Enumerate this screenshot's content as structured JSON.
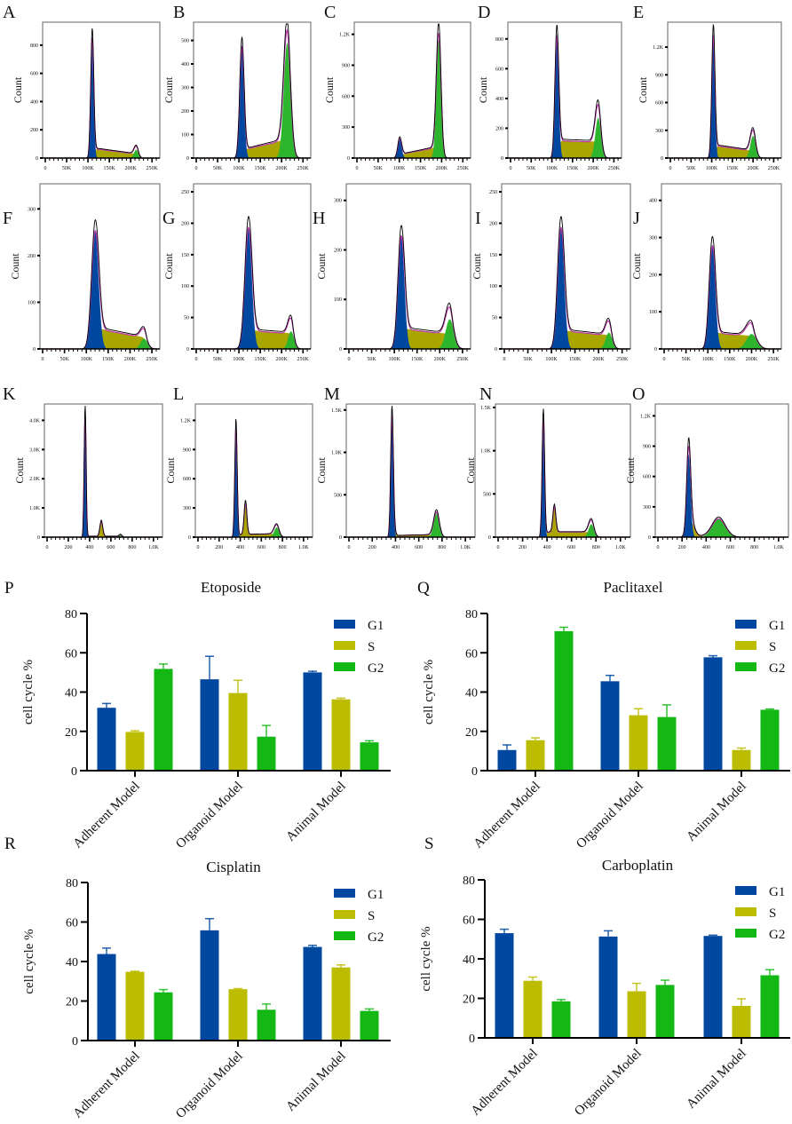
{
  "colors": {
    "g1": "#0047a0",
    "s": "#bcbc00",
    "s_hist": "#a9a600",
    "g2": "#14b814",
    "g2_hist": "#2db52d",
    "outline": "#000000",
    "fit": "#c03cb0"
  },
  "chart_data": [
    {
      "type": "area",
      "label": "A",
      "ylabel": "Count",
      "xmax": 262,
      "ymax": 950,
      "xticks": [
        "0",
        "50K",
        "100K",
        "150K",
        "200K",
        "250K"
      ],
      "xtick_values": [
        0,
        50,
        100,
        150,
        200,
        250
      ],
      "yticks": [
        "0",
        "200",
        "400",
        "600",
        "800"
      ],
      "ytick_values": [
        0,
        200,
        400,
        600,
        800
      ],
      "g1": {
        "mu": 110,
        "sd": 3.5,
        "h": 860
      },
      "s": {
        "level": 70,
        "end_level": 30,
        "bump": null
      },
      "g2": {
        "mu": 213,
        "sd": 5,
        "h": 60
      }
    },
    {
      "type": "area",
      "label": "B",
      "ylabel": "Count",
      "xmax": 262,
      "ymax": 570,
      "xticks": [
        "0",
        "50K",
        "100K",
        "150K",
        "200K",
        "250K"
      ],
      "xtick_values": [
        0,
        50,
        100,
        150,
        200,
        250
      ],
      "yticks": [
        "0",
        "100",
        "200",
        "300",
        "400",
        "500"
      ],
      "ytick_values": [
        0,
        100,
        200,
        300,
        400,
        500
      ],
      "g1": {
        "mu": 107,
        "sd": 5,
        "h": 480
      },
      "s": {
        "level": 35,
        "end_level": 80,
        "bump": null
      },
      "g2": {
        "mu": 213,
        "sd": 8,
        "h": 490
      }
    },
    {
      "type": "area",
      "label": "C",
      "ylabel": "Count",
      "xmax": 262,
      "ymax": 1300,
      "xticks": [
        "0",
        "50K",
        "100K",
        "150K",
        "200K",
        "250K"
      ],
      "xtick_values": [
        0,
        50,
        100,
        150,
        200,
        250
      ],
      "yticks": [
        "0",
        "300",
        "600",
        "900",
        "1.2K"
      ],
      "ytick_values": [
        0,
        300,
        600,
        900,
        1200
      ],
      "g1": {
        "mu": 101,
        "sd": 4.5,
        "h": 190
      },
      "s": {
        "level": 35,
        "end_level": 110,
        "bump": null
      },
      "g2": {
        "mu": 193,
        "sd": 5.5,
        "h": 1150
      }
    },
    {
      "type": "area",
      "label": "D",
      "ylabel": "Count",
      "xmax": 262,
      "ymax": 900,
      "xticks": [
        "0",
        "50K",
        "100K",
        "150K",
        "200K",
        "250K"
      ],
      "xtick_values": [
        0,
        50,
        100,
        150,
        200,
        250
      ],
      "yticks": [
        "0",
        "200",
        "400",
        "600",
        "800"
      ],
      "ytick_values": [
        0,
        200,
        400,
        600,
        800
      ],
      "g1": {
        "mu": 112,
        "sd": 4.5,
        "h": 830
      },
      "s": {
        "level": 120,
        "end_level": 110,
        "bump": null
      },
      "g2": {
        "mu": 212,
        "sd": 7,
        "h": 270
      }
    },
    {
      "type": "area",
      "label": "E",
      "ylabel": "Count",
      "xmax": 262,
      "ymax": 1450,
      "xticks": [
        "0",
        "50K",
        "100K",
        "150K",
        "200K",
        "250K"
      ],
      "xtick_values": [
        0,
        50,
        100,
        150,
        200,
        250
      ],
      "yticks": [
        "0",
        "300",
        "600",
        "900",
        "1.2K"
      ],
      "ytick_values": [
        0,
        300,
        600,
        900,
        1200
      ],
      "g1": {
        "mu": 104,
        "sd": 3.8,
        "h": 1350
      },
      "s": {
        "level": 140,
        "end_level": 80,
        "bump": null
      },
      "g2": {
        "mu": 200,
        "sd": 6.5,
        "h": 240
      }
    },
    {
      "type": "area",
      "label": "F",
      "ylabel": "Count",
      "xmax": 262,
      "ymax": 350,
      "xticks": [
        "0",
        "50K",
        "100K",
        "150K",
        "200K",
        "250K"
      ],
      "xtick_values": [
        0,
        50,
        100,
        150,
        200,
        250
      ],
      "yticks": [
        "0",
        "100",
        "200",
        "300"
      ],
      "ytick_values": [
        0,
        100,
        200,
        300
      ],
      "g1": {
        "mu": 120,
        "sd": 8,
        "h": 255
      },
      "s": {
        "level": 45,
        "end_level": 25,
        "bump": null
      },
      "g2": {
        "mu": 232,
        "sd": 8,
        "h": 22
      }
    },
    {
      "type": "area",
      "label": "G",
      "ylabel": "Count",
      "xmax": 262,
      "ymax": 260,
      "xticks": [
        "0",
        "50K",
        "100K",
        "150K",
        "200K",
        "250K"
      ],
      "xtick_values": [
        0,
        50,
        100,
        150,
        200,
        250
      ],
      "yticks": [
        "0",
        "50",
        "100",
        "150",
        "200",
        "250"
      ],
      "ytick_values": [
        0,
        50,
        100,
        150,
        200,
        250
      ],
      "g1": {
        "mu": 122,
        "sd": 8,
        "h": 195
      },
      "s": {
        "level": 30,
        "end_level": 25,
        "bump": null
      },
      "g2": {
        "mu": 222,
        "sd": 7,
        "h": 28
      }
    },
    {
      "type": "area",
      "label": "H",
      "ylabel": "Count",
      "xmax": 262,
      "ymax": 330,
      "xticks": [
        "0",
        "50K",
        "100K",
        "150K",
        "200K",
        "250K"
      ],
      "xtick_values": [
        0,
        50,
        100,
        150,
        200,
        250
      ],
      "yticks": [
        "0",
        "100",
        "200",
        "300"
      ],
      "ytick_values": [
        0,
        100,
        200,
        300
      ],
      "g1": {
        "mu": 115,
        "sd": 7,
        "h": 230
      },
      "s": {
        "level": 42,
        "end_level": 30,
        "bump": null
      },
      "g2": {
        "mu": 222,
        "sd": 9,
        "h": 60
      }
    },
    {
      "type": "area",
      "label": "I",
      "ylabel": "Count",
      "xmax": 262,
      "ymax": 260,
      "xticks": [
        "0",
        "50K",
        "100K",
        "150K",
        "200K",
        "250K"
      ],
      "xtick_values": [
        0,
        50,
        100,
        150,
        200,
        250
      ],
      "yticks": [
        "0",
        "50",
        "100",
        "150",
        "200",
        "250"
      ],
      "ytick_values": [
        0,
        50,
        100,
        150,
        200,
        250
      ],
      "g1": {
        "mu": 120,
        "sd": 7,
        "h": 195
      },
      "s": {
        "level": 30,
        "end_level": 22,
        "bump": null
      },
      "g2": {
        "mu": 222,
        "sd": 7,
        "h": 26
      }
    },
    {
      "type": "area",
      "label": "J",
      "ylabel": "Count",
      "xmax": 262,
      "ymax": 440,
      "xticks": [
        "0",
        "50K",
        "100K",
        "150K",
        "200K",
        "250K"
      ],
      "xtick_values": [
        0,
        50,
        100,
        150,
        200,
        250
      ],
      "yticks": [
        "0",
        "100",
        "200",
        "300",
        "400"
      ],
      "ytick_values": [
        0,
        100,
        200,
        300,
        400
      ],
      "g1": {
        "mu": 110,
        "sd": 7,
        "h": 280
      },
      "s": {
        "level": 45,
        "end_level": 35,
        "bump": null
      },
      "g2": {
        "mu": 200,
        "sd": 12,
        "h": 40
      }
    },
    {
      "type": "area",
      "label": "K",
      "ylabel": "Count",
      "xmax": 1060,
      "ymax": 4500,
      "xticks": [
        "0",
        "200",
        "400",
        "600",
        "800",
        "1.0K"
      ],
      "xtick_values": [
        0,
        200,
        400,
        600,
        800,
        1000
      ],
      "yticks": [
        "0",
        "1.0K",
        "2.0K",
        "3.0K",
        "4.0K"
      ],
      "ytick_values": [
        0,
        1000,
        2000,
        3000,
        4000
      ],
      "g1": {
        "mu": 358,
        "sd": 9,
        "h": 4300
      },
      "s": {
        "level": 30,
        "end_level": 30,
        "bump": {
          "mu": 510,
          "sd": 13,
          "h": 520
        }
      },
      "g2": {
        "mu": 690,
        "sd": 12,
        "h": 70
      }
    },
    {
      "type": "area",
      "label": "L",
      "ylabel": "Count",
      "xmax": 1060,
      "ymax": 1350,
      "xticks": [
        "0",
        "200",
        "400",
        "600",
        "800",
        "1.0K"
      ],
      "xtick_values": [
        0,
        200,
        400,
        600,
        800,
        1000
      ],
      "yticks": [
        "0",
        "300",
        "600",
        "900",
        "1.2K"
      ],
      "ytick_values": [
        0,
        300,
        600,
        900,
        1200
      ],
      "g1": {
        "mu": 360,
        "sd": 11,
        "h": 1150
      },
      "s": {
        "level": 25,
        "end_level": 35,
        "bump": {
          "mu": 450,
          "sd": 13,
          "h": 330
        }
      },
      "g2": {
        "mu": 745,
        "sd": 24,
        "h": 100
      }
    },
    {
      "type": "area",
      "label": "M",
      "ylabel": "Count",
      "xmax": 1060,
      "ymax": 1550,
      "xticks": [
        "0",
        "200",
        "400",
        "600",
        "800",
        "1.0K"
      ],
      "xtick_values": [
        0,
        200,
        400,
        600,
        800,
        1000
      ],
      "yticks": [
        "0",
        "500",
        "1.0K",
        "1.5K"
      ],
      "ytick_values": [
        0,
        500,
        1000,
        1500
      ],
      "g1": {
        "mu": 370,
        "sd": 11,
        "h": 1460
      },
      "s": {
        "level": 18,
        "end_level": 30,
        "bump": {
          "mu": 390,
          "sd": 12,
          "h": 60
        }
      },
      "g2": {
        "mu": 752,
        "sd": 24,
        "h": 280
      }
    },
    {
      "type": "area",
      "label": "N",
      "ylabel": "Count",
      "xmax": 1060,
      "ymax": 1520,
      "xticks": [
        "0",
        "200",
        "400",
        "600",
        "800",
        "1.0K"
      ],
      "xtick_values": [
        0,
        200,
        400,
        600,
        800,
        1000
      ],
      "yticks": [
        "0",
        "500",
        "1.0K",
        "1.5K"
      ],
      "ytick_values": [
        0,
        500,
        1000,
        1500
      ],
      "g1": {
        "mu": 370,
        "sd": 10,
        "h": 1400
      },
      "s": {
        "level": 60,
        "end_level": 60,
        "bump": {
          "mu": 460,
          "sd": 12,
          "h": 300
        }
      },
      "g2": {
        "mu": 762,
        "sd": 22,
        "h": 150
      }
    },
    {
      "type": "area",
      "label": "O",
      "ylabel": "Count",
      "xmax": 1060,
      "ymax": 1300,
      "xticks": [
        "0",
        "200",
        "400",
        "600",
        "800",
        "1.0K"
      ],
      "xtick_values": [
        0,
        200,
        400,
        600,
        800,
        1000
      ],
      "yticks": [
        "0",
        "300",
        "600",
        "900",
        "1.2K"
      ],
      "ytick_values": [
        0,
        300,
        600,
        900,
        1200
      ],
      "g1": {
        "mu": 255,
        "sd": 16,
        "h": 820
      },
      "s": {
        "level": 10,
        "end_level": 10,
        "bump": {
          "mu": 275,
          "sd": 28,
          "h": 140
        }
      },
      "g2": {
        "mu": 505,
        "sd": 55,
        "h": 180
      }
    },
    {
      "type": "bar",
      "label": "P",
      "title": "Etoposide",
      "ylabel": "cell cycle  %",
      "ylim": [
        0,
        80
      ],
      "yticks": [
        "0",
        "20",
        "40",
        "60",
        "80"
      ],
      "ytick_values": [
        0,
        20,
        40,
        60,
        80
      ],
      "categories": [
        "Adherent Model",
        "Organoid Model",
        "Animal Model"
      ],
      "series": [
        {
          "name": "G1",
          "values": [
            32,
            46.5,
            50
          ],
          "error_top": [
            34.2,
            58.2,
            50.6
          ]
        },
        {
          "name": "S",
          "values": [
            19.7,
            39.5,
            36.3
          ],
          "error_top": [
            20.3,
            46,
            36.9
          ]
        },
        {
          "name": "G2",
          "values": [
            51.8,
            17.3,
            14.4
          ],
          "error_top": [
            54.3,
            23,
            15.2
          ]
        }
      ]
    },
    {
      "type": "bar",
      "label": "Q",
      "title": "Paclitaxel",
      "ylabel": "cell cycle  %",
      "ylim": [
        0,
        80
      ],
      "yticks": [
        "0",
        "20",
        "40",
        "60",
        "80"
      ],
      "ytick_values": [
        0,
        20,
        40,
        60,
        80
      ],
      "categories": [
        "Adherent Model",
        "Organoid Model",
        "Animal Model"
      ],
      "series": [
        {
          "name": "G1",
          "values": [
            10.5,
            45.5,
            57.7
          ],
          "error_top": [
            13.1,
            48.5,
            58.5
          ]
        },
        {
          "name": "S",
          "values": [
            15.5,
            28.2,
            10.5
          ],
          "error_top": [
            16.7,
            31.5,
            11.5
          ]
        },
        {
          "name": "G2",
          "values": [
            71,
            27.3,
            31
          ],
          "error_top": [
            73,
            33.5,
            31.4
          ]
        }
      ]
    },
    {
      "type": "bar",
      "label": "R",
      "title": "Cisplatin",
      "ylabel": "cell cycle %",
      "ylim": [
        0,
        80
      ],
      "yticks": [
        "0",
        "20",
        "40",
        "60",
        "80"
      ],
      "ytick_values": [
        0,
        20,
        40,
        60,
        80
      ],
      "categories": [
        "Adherent Model",
        "Organoid Model",
        "Animal Model"
      ],
      "series": [
        {
          "name": "G1",
          "values": [
            43.8,
            55.8,
            47.4
          ],
          "error_top": [
            46.8,
            61.7,
            48.2
          ]
        },
        {
          "name": "S",
          "values": [
            34.8,
            26,
            37
          ],
          "error_top": [
            35.1,
            26.3,
            38.3
          ]
        },
        {
          "name": "G2",
          "values": [
            24.4,
            15.6,
            15
          ],
          "error_top": [
            25.8,
            18.5,
            16
          ]
        }
      ]
    },
    {
      "type": "bar",
      "label": "S",
      "title": "Carboplatin",
      "ylabel": "cell cycle %",
      "ylim": [
        0,
        80
      ],
      "yticks": [
        "0",
        "20",
        "40",
        "60",
        "80"
      ],
      "ytick_values": [
        0,
        20,
        40,
        60,
        80
      ],
      "categories": [
        "Adherent Model",
        "Organoid Model",
        "Animal Model"
      ],
      "series": [
        {
          "name": "G1",
          "values": [
            53,
            51.3,
            51.6
          ],
          "error_top": [
            55,
            54.2,
            52
          ]
        },
        {
          "name": "S",
          "values": [
            28.9,
            23.6,
            16.2
          ],
          "error_top": [
            30.8,
            27.6,
            19.8
          ]
        },
        {
          "name": "G2",
          "values": [
            18.5,
            26.8,
            31.7
          ],
          "error_top": [
            19.4,
            29.2,
            34.5
          ]
        }
      ]
    }
  ]
}
